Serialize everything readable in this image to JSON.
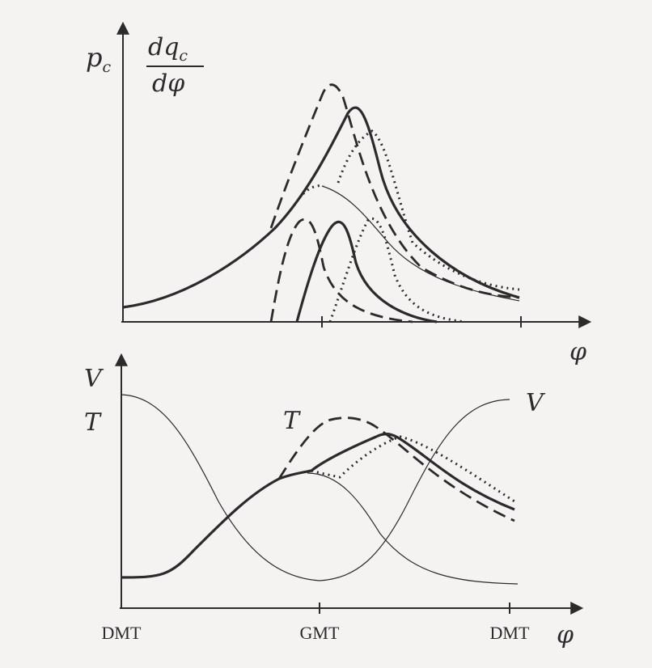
{
  "top_panel": {
    "y_label_main": "p",
    "y_label_sub": "c",
    "frac_numerator": "dq",
    "frac_numerator_sub": "c",
    "frac_denominator": "dφ",
    "x_label": "φ"
  },
  "bottom_panel": {
    "y_label_v": "V",
    "y_label_t": "T",
    "curve_label_t": "T",
    "curve_label_v": "V",
    "x_label": "φ",
    "tick_labels": [
      "DMT",
      "GMT",
      "DMT"
    ]
  }
}
